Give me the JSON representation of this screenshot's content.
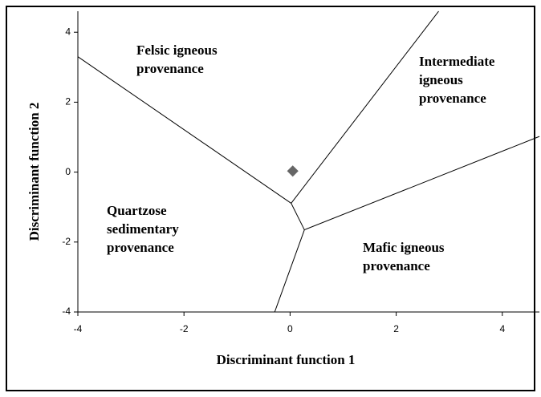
{
  "chart_data": {
    "type": "scatter",
    "xlabel": "Discriminant function 1",
    "ylabel": "Discriminant function 2",
    "xlim": [
      -4,
      4.7
    ],
    "ylim": [
      -4,
      4.6
    ],
    "xticks": [
      -4,
      -2,
      0,
      2,
      4
    ],
    "yticks": [
      -4,
      -2,
      0,
      2,
      4
    ],
    "series": [
      {
        "color": "#666666",
        "x": [
          0.05
        ],
        "values": [
          0.03
        ]
      }
    ],
    "boundaries": [
      {
        "x": [
          -4,
          0.02
        ],
        "y": [
          3.3,
          -0.89
        ]
      },
      {
        "x": [
          0.02,
          2.8
        ],
        "y": [
          -0.89,
          4.6
        ]
      },
      {
        "x": [
          0.02,
          0.27
        ],
        "y": [
          -0.89,
          -1.65
        ]
      },
      {
        "x": [
          0.27,
          4.7
        ],
        "y": [
          -1.65,
          1.02
        ]
      },
      {
        "x": [
          0.27,
          -0.29
        ],
        "y": [
          -1.65,
          -4
        ]
      }
    ],
    "regions": [
      [
        "Felsic igneous",
        "provenance"
      ],
      [
        "Intermediate",
        "igneous",
        "provenance"
      ],
      [
        "Quartzose",
        "sedimentary",
        "provenance"
      ],
      [
        "Mafic igneous",
        "provenance"
      ]
    ]
  }
}
